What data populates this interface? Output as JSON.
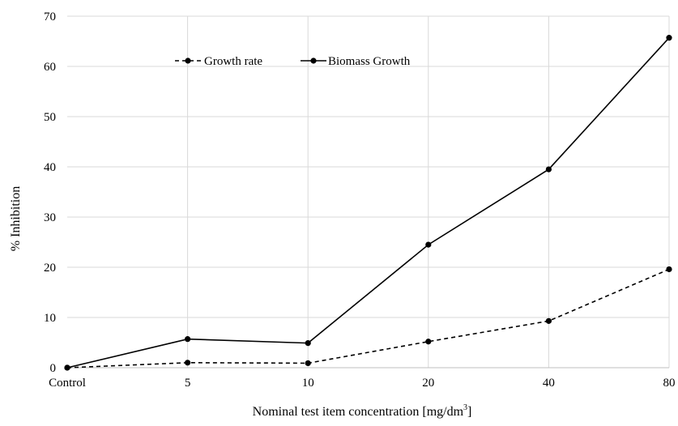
{
  "chart_data": {
    "type": "line",
    "title": "",
    "xlabel": "Nominal test item concentration [mg/dm",
    "xlabel_sup": "3",
    "xlabel_suffix": "]",
    "ylabel": "% Inhibition",
    "categories": [
      "Control",
      "5",
      "10",
      "20",
      "40",
      "80"
    ],
    "ylim": [
      0,
      70
    ],
    "yticks": [
      0,
      10,
      20,
      30,
      40,
      50,
      60,
      70
    ],
    "grid": true,
    "legend_position": "top-left",
    "series": [
      {
        "name": "Growth rate",
        "style": "dashed",
        "marker": "circle",
        "color": "#000000",
        "values": [
          0,
          1.0,
          0.9,
          5.2,
          9.3,
          19.6
        ]
      },
      {
        "name": "Biomass Growth",
        "style": "solid",
        "marker": "circle",
        "color": "#000000",
        "values": [
          0,
          5.7,
          4.9,
          24.5,
          39.5,
          65.7
        ]
      }
    ]
  }
}
